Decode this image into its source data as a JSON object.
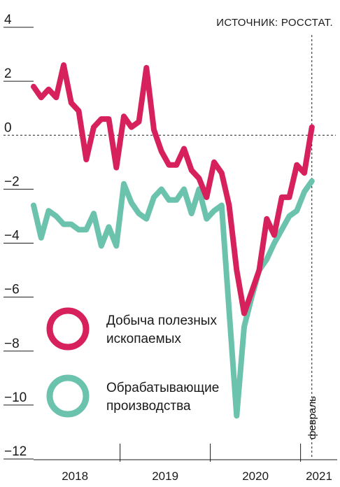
{
  "source": "ИСТОЧНИК: РОССТАТ.",
  "chart_data": {
    "type": "line",
    "title": "",
    "xlabel": "",
    "ylabel": "",
    "ylim": [
      -12,
      4
    ],
    "yticks": [
      4,
      2,
      0,
      -2,
      -4,
      -6,
      -8,
      -10,
      -12
    ],
    "ytick_labels": [
      "4",
      "2",
      "0",
      "−2",
      "−4",
      "−6",
      "−8",
      "−10",
      "−12"
    ],
    "x_period_labels": [
      "2018",
      "2019",
      "2020",
      "2021"
    ],
    "months": [
      "2018-01",
      "2018-02",
      "2018-03",
      "2018-04",
      "2018-05",
      "2018-06",
      "2018-07",
      "2018-08",
      "2018-09",
      "2018-10",
      "2018-11",
      "2018-12",
      "2019-01",
      "2019-02",
      "2019-03",
      "2019-04",
      "2019-05",
      "2019-06",
      "2019-07",
      "2019-08",
      "2019-09",
      "2019-10",
      "2019-11",
      "2019-12",
      "2020-01",
      "2020-02",
      "2020-03",
      "2020-04",
      "2020-05",
      "2020-06",
      "2020-07",
      "2020-08",
      "2020-09",
      "2020-10",
      "2020-11",
      "2020-12",
      "2021-01",
      "2021-02"
    ],
    "series": [
      {
        "name": "Добыча полезных ископаемых",
        "color": "#d6215d",
        "values": [
          1.8,
          1.4,
          1.7,
          1.4,
          2.6,
          1.2,
          0.9,
          -0.9,
          0.3,
          0.6,
          0.6,
          -1.2,
          0.7,
          0.3,
          0.5,
          2.5,
          0.2,
          -0.6,
          -1.1,
          -1.1,
          -0.5,
          -1.3,
          -1.6,
          -2.3,
          -1.0,
          -1.4,
          -2.6,
          -5.0,
          -6.6,
          -5.8,
          -5.0,
          -3.1,
          -3.7,
          -2.3,
          -2.3,
          -1.1,
          -1.4,
          0.3
        ]
      },
      {
        "name": "Обрабатывающие производства",
        "color": "#6cc3ad",
        "values": [
          -2.6,
          -3.8,
          -2.8,
          -3.0,
          -3.3,
          -3.3,
          -3.5,
          -3.5,
          -2.9,
          -4.1,
          -3.4,
          -4.1,
          -1.8,
          -2.5,
          -2.9,
          -3.1,
          -2.3,
          -2.0,
          -2.4,
          -2.4,
          -2.0,
          -2.9,
          -2.0,
          -3.1,
          -2.8,
          -2.6,
          -6.5,
          -10.4,
          -7.1,
          -6.0,
          -5.0,
          -4.6,
          -4.0,
          -3.5,
          -3.0,
          -2.8,
          -2.1,
          -1.7
        ]
      }
    ],
    "annotation": "февраль",
    "legend_position": "bottom-left",
    "zero_line": "dashed"
  }
}
